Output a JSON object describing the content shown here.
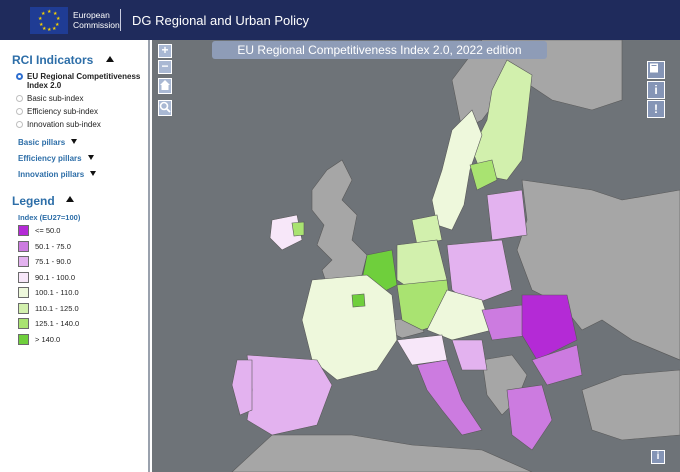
{
  "header": {
    "logo_line1": "European",
    "logo_line2": "Commission",
    "title": "DG Regional and Urban Policy"
  },
  "left_panel": {
    "indicators_title": "RCI Indicators",
    "indicators": [
      {
        "label": "EU Regional Competitiveness Index 2.0",
        "selected": true
      },
      {
        "label": "Basic sub-index",
        "selected": false
      },
      {
        "label": "Efficiency sub-index",
        "selected": false
      },
      {
        "label": "Innovation sub-index",
        "selected": false
      }
    ],
    "pillars": [
      "Basic pillars",
      "Efficiency pillars",
      "Innovation pillars"
    ],
    "legend_title": "Legend",
    "legend_subtitle": "Index (EU27=100)",
    "legend_items": [
      {
        "label": "<= 50.0",
        "color": "#b42ad6"
      },
      {
        "label": "50.1 - 75.0",
        "color": "#cc7be0"
      },
      {
        "label": "75.1 - 90.0",
        "color": "#e3b2ef"
      },
      {
        "label": "90.1 - 100.0",
        "color": "#f7e7f9"
      },
      {
        "label": "100.1 - 110.0",
        "color": "#eef8dc"
      },
      {
        "label": "110.1 - 125.0",
        "color": "#d2f0ad"
      },
      {
        "label": "125.1 - 140.0",
        "color": "#a9e371"
      },
      {
        "label": "> 140.0",
        "color": "#6fcf3c"
      }
    ]
  },
  "map": {
    "title": "EU Regional Competitiveness Index 2.0, 2022 edition",
    "zoom_in": "+",
    "zoom_out": "−",
    "tool_info": "i",
    "tool_alert": "!",
    "colors": {
      "sea": "#6e7378",
      "non_eu_land": "#a6a6a6",
      "border": "#5a5a5a"
    }
  }
}
